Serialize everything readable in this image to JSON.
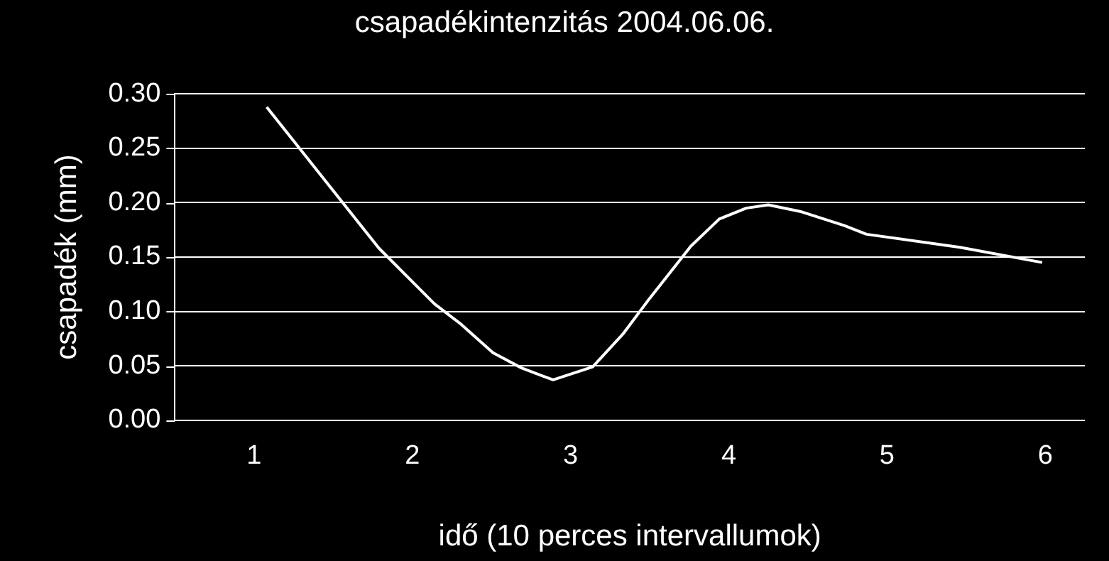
{
  "chart_data": {
    "type": "line",
    "title": "csapadékintenzitás 2004.06.06.",
    "xlabel": "idő (10 perces intervallumok)",
    "ylabel": "csapadék (mm)",
    "x": [
      1.08,
      1.79,
      2.14,
      2.31,
      2.51,
      2.69,
      2.89,
      3.14,
      3.33,
      3.5,
      3.76,
      3.94,
      4.11,
      4.25,
      4.45,
      4.73,
      4.87,
      5.46,
      5.98
    ],
    "series": [
      {
        "color": "#ffffff",
        "values": [
          0.288,
          0.158,
          0.107,
          0.088,
          0.062,
          0.048,
          0.037,
          0.049,
          0.079,
          0.112,
          0.16,
          0.185,
          0.195,
          0.198,
          0.192,
          0.179,
          0.171,
          0.159,
          0.145
        ]
      }
    ],
    "xlim": [
      0.5,
      6.25
    ],
    "xticks": [
      1,
      2,
      3,
      4,
      5,
      6
    ],
    "ylim": [
      0,
      0.3
    ],
    "yticks": [
      {
        "value": 0,
        "label": "0.00"
      },
      0.05,
      {
        "value": 0.1,
        "label": "0.10"
      },
      0.15,
      {
        "value": 0.2,
        "label": "0.20"
      },
      0.25,
      {
        "value": 0.3,
        "label": "0.30"
      }
    ],
    "grid": "y",
    "legend": false,
    "marker": "none",
    "line_style": "solid"
  }
}
